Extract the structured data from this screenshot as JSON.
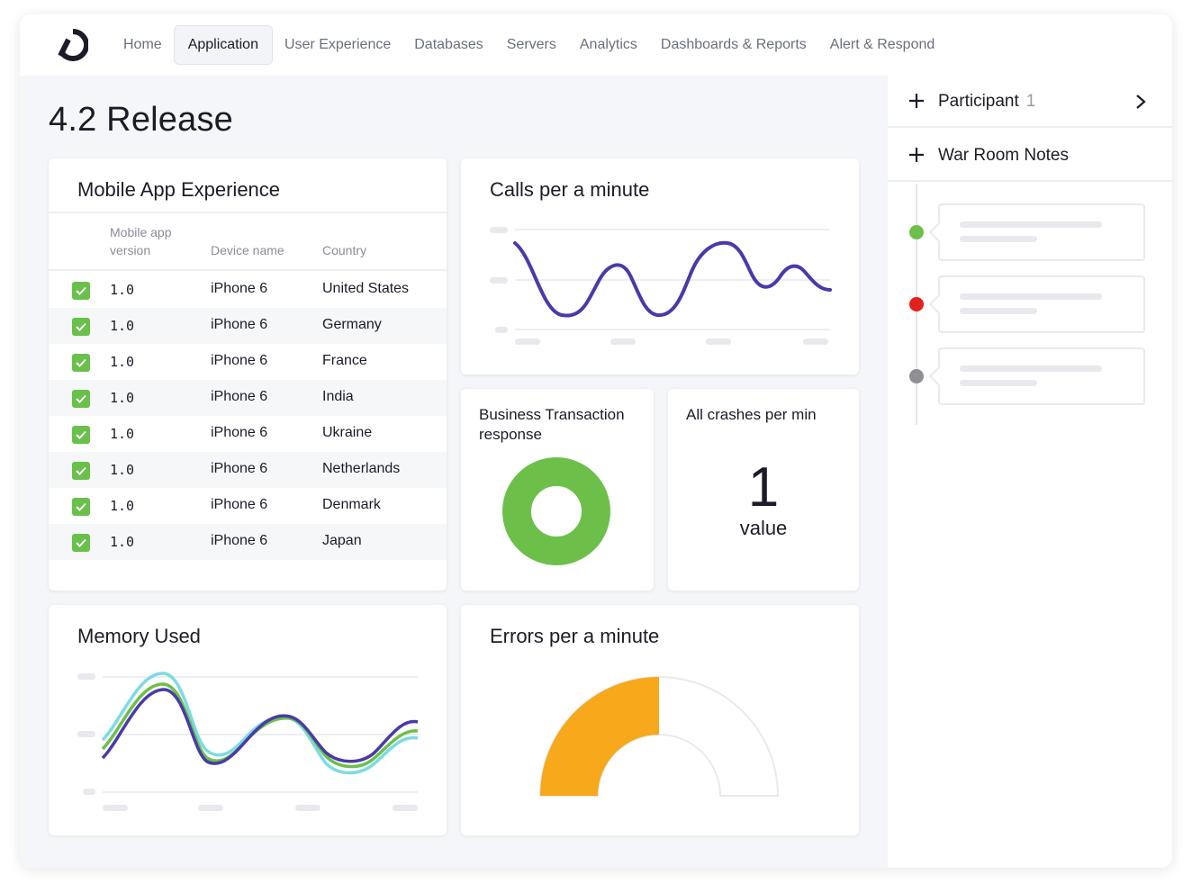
{
  "nav": {
    "items": [
      "Home",
      "Application",
      "User Experience",
      "Databases",
      "Servers",
      "Analytics",
      "Dashboards & Reports",
      "Alert & Respond"
    ],
    "active": "Application"
  },
  "page": {
    "title": "4.2 Release"
  },
  "mobile_app": {
    "title": "Mobile App Experience",
    "columns": [
      "Mobile app version",
      "Device name",
      "Country"
    ],
    "rows": [
      {
        "version": "1.0",
        "device": "iPhone 6",
        "country": "United States",
        "checked": true
      },
      {
        "version": "1.0",
        "device": "iPhone 6",
        "country": "Germany",
        "checked": true
      },
      {
        "version": "1.0",
        "device": "iPhone 6",
        "country": "France",
        "checked": true
      },
      {
        "version": "1.0",
        "device": "iPhone 6",
        "country": "India",
        "checked": true
      },
      {
        "version": "1.0",
        "device": "iPhone 6",
        "country": "Ukraine",
        "checked": true
      },
      {
        "version": "1.0",
        "device": "iPhone 6",
        "country": "Netherlands",
        "checked": true
      },
      {
        "version": "1.0",
        "device": "iPhone 6",
        "country": "Denmark",
        "checked": true
      },
      {
        "version": "1.0",
        "device": "iPhone 6",
        "country": "Japan",
        "checked": true
      }
    ]
  },
  "calls": {
    "title": "Calls per a minute",
    "line_color": "#4a3aa8"
  },
  "business": {
    "title": "Business Transaction response",
    "donut_color": "#6cc04a"
  },
  "crashes": {
    "title": "All crashes per min",
    "value": "1",
    "value_label": "value"
  },
  "memory": {
    "title": "Memory Used",
    "colors": [
      "#7ddbe0",
      "#6cc04a",
      "#4a3aa8"
    ]
  },
  "errors": {
    "title": "Errors per a minute",
    "gauge_color": "#f7a81b",
    "fraction": 0.5
  },
  "side": {
    "participant_label": "Participant",
    "participant_count": "1",
    "notes_label": "War Room Notes",
    "timeline": [
      {
        "status_color": "#6cc04a"
      },
      {
        "status_color": "#e3201b"
      },
      {
        "status_color": "#8e8e93"
      }
    ]
  }
}
